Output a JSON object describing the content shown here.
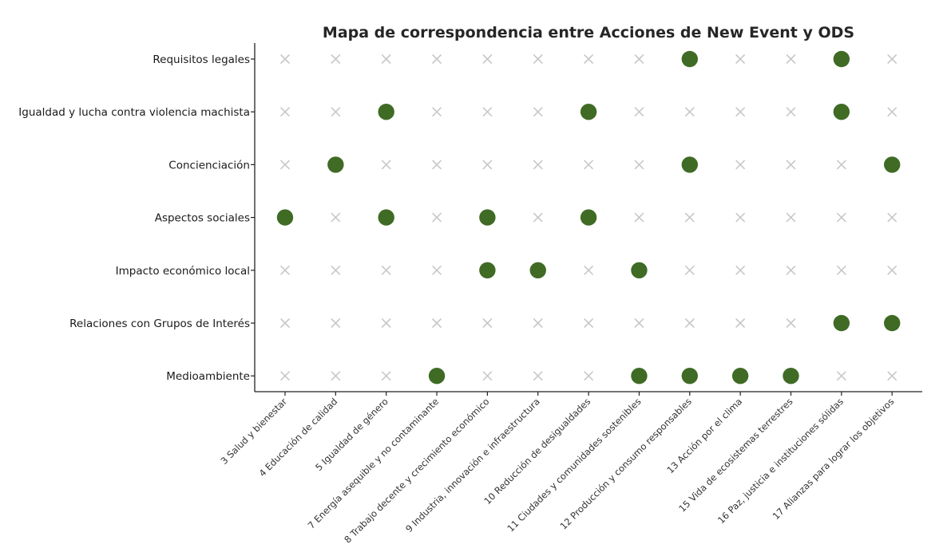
{
  "chart_data": {
    "type": "scatter",
    "title": "Mapa de correspondencia entre Acciones de New Event y ODS",
    "xlabel": "",
    "ylabel": "",
    "grid": false,
    "colors": {
      "match": "#3f6b25",
      "nomatch": "#c8c8c8"
    },
    "x_categories": [
      "3 Salud y bienestar",
      "4 Educación de calidad",
      "5 Igualdad de género",
      "7 Energía asequible y no contaminante",
      "8 Trabajo decente y crecimiento económico",
      "9 Industria, innovación e infraestructura",
      "10 Reducción de desigualdades",
      "11 Ciudades y comunidades sostenibles",
      "12 Producción y consumo responsables",
      "13 Acción por el clima",
      "15 Vida de ecosistemas terrestres",
      "16 Paz, justicia e instituciones sólidas",
      "17 Alianzas para lograr los objetivos"
    ],
    "y_categories": [
      "Requisitos legales",
      "Igualdad y lucha contra violencia machista",
      "Concienciación",
      "Aspectos sociales",
      "Impacto económico local",
      "Relaciones con Grupos de Interés",
      "Medioambiente"
    ],
    "matrix": [
      [
        0,
        0,
        0,
        0,
        0,
        0,
        0,
        0,
        1,
        0,
        0,
        1,
        0
      ],
      [
        0,
        0,
        1,
        0,
        0,
        0,
        1,
        0,
        0,
        0,
        0,
        1,
        0
      ],
      [
        0,
        1,
        0,
        0,
        0,
        0,
        0,
        0,
        1,
        0,
        0,
        0,
        1
      ],
      [
        1,
        0,
        1,
        0,
        1,
        0,
        1,
        0,
        0,
        0,
        0,
        0,
        0
      ],
      [
        0,
        0,
        0,
        0,
        1,
        1,
        0,
        1,
        0,
        0,
        0,
        0,
        0
      ],
      [
        0,
        0,
        0,
        0,
        0,
        0,
        0,
        0,
        0,
        0,
        0,
        1,
        1
      ],
      [
        0,
        0,
        0,
        1,
        0,
        0,
        0,
        1,
        1,
        1,
        1,
        0,
        0
      ]
    ]
  }
}
